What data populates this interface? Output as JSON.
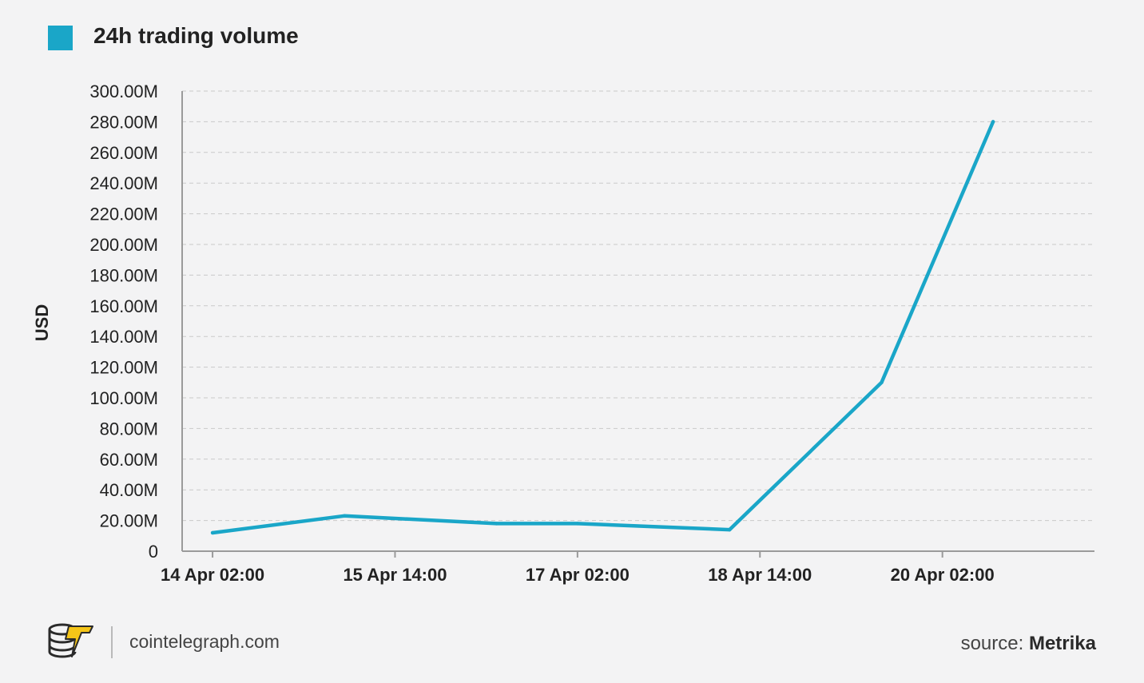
{
  "legend": {
    "label": "24h trading volume",
    "color": "#1aa6c8"
  },
  "footer": {
    "brand": "cointelegraph.com",
    "source_prefix": "source: ",
    "source_name": "Metrika",
    "logo_icon": "cointelegraph-logo-icon"
  },
  "chart_data": {
    "type": "line",
    "ylabel": "USD",
    "ylim": [
      0,
      300000000
    ],
    "y_ticks": [
      {
        "value": 0,
        "label": "0"
      },
      {
        "value": 20000000,
        "label": "20.00M"
      },
      {
        "value": 40000000,
        "label": "40.00M"
      },
      {
        "value": 60000000,
        "label": "60.00M"
      },
      {
        "value": 80000000,
        "label": "80.00M"
      },
      {
        "value": 100000000,
        "label": "100.00M"
      },
      {
        "value": 120000000,
        "label": "120.00M"
      },
      {
        "value": 140000000,
        "label": "140.00M"
      },
      {
        "value": 160000000,
        "label": "160.00M"
      },
      {
        "value": 180000000,
        "label": "180.00M"
      },
      {
        "value": 200000000,
        "label": "200.00M"
      },
      {
        "value": 220000000,
        "label": "220.00M"
      },
      {
        "value": 240000000,
        "label": "240.00M"
      },
      {
        "value": 260000000,
        "label": "260.00M"
      },
      {
        "value": 280000000,
        "label": "280.00M"
      },
      {
        "value": 300000000,
        "label": "300.00M"
      }
    ],
    "x_ticks": [
      "14 Apr 02:00",
      "15 Apr 14:00",
      "17 Apr 02:00",
      "18 Apr 14:00",
      "20 Apr 02:00"
    ],
    "xlim": [
      "2024-04-13 20:00",
      "2024-04-21 08:00"
    ],
    "grid": true,
    "legend_position": "top-left",
    "series": [
      {
        "name": "24h trading volume",
        "color": "#1aa6c8",
        "points": [
          {
            "x": "2024-04-14 02:00",
            "y": 12000000
          },
          {
            "x": "2024-04-15 04:00",
            "y": 23000000
          },
          {
            "x": "2024-04-16 10:00",
            "y": 18000000
          },
          {
            "x": "2024-04-17 02:00",
            "y": 18000000
          },
          {
            "x": "2024-04-18 08:00",
            "y": 14000000
          },
          {
            "x": "2024-04-19 14:00",
            "y": 110000000
          },
          {
            "x": "2024-04-20 12:00",
            "y": 280000000
          }
        ]
      }
    ]
  }
}
